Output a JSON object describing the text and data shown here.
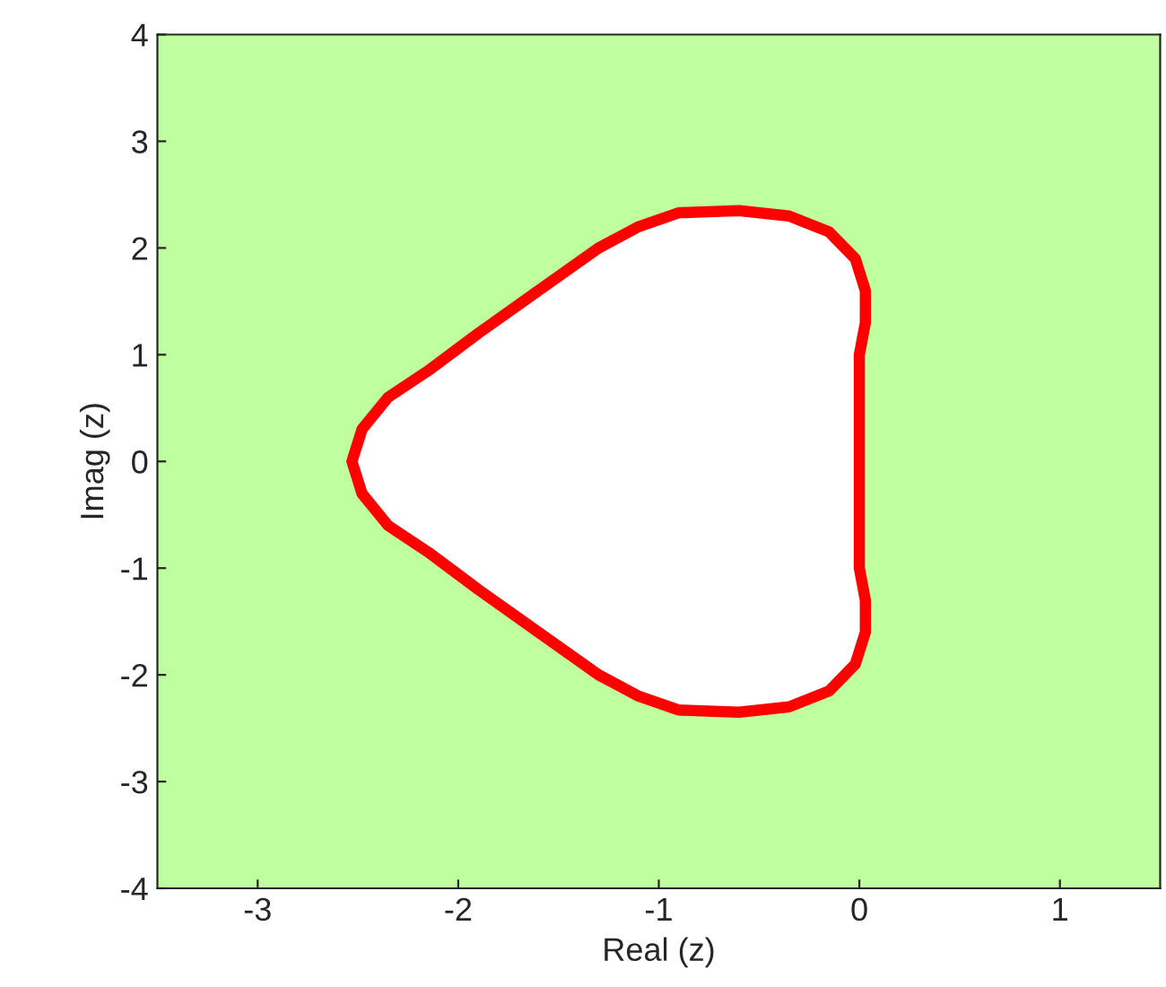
{
  "chart_data": {
    "type": "area",
    "xlabel": "Real (z)",
    "ylabel": "Imag (z)",
    "xlim": [
      -3.5,
      1.5
    ],
    "xticks": [
      -3,
      -2,
      -1,
      0,
      1
    ],
    "ylim": [
      -4,
      4
    ],
    "yticks": [
      -4,
      -3,
      -2,
      -1,
      0,
      1,
      2,
      3,
      4
    ],
    "grid": false,
    "line_style": "solid",
    "bands": [
      {
        "axis": "x",
        "from": -3.5,
        "to": 1.5,
        "color": "#bfff9f"
      }
    ],
    "series": [
      {
        "color": "#ff0000",
        "x": [
          -2.53,
          -2.48,
          -2.35,
          -2.15,
          -1.9,
          -1.6,
          -1.3,
          -1.1,
          -0.9,
          -0.6,
          -0.35,
          -0.15,
          -0.02,
          0.03,
          0.03,
          0.0,
          0.0,
          0.0,
          0.0,
          0.03,
          0.03,
          -0.02,
          -0.15,
          -0.35,
          -0.6,
          -0.9,
          -1.1,
          -1.3,
          -1.6,
          -1.9,
          -2.15,
          -2.35,
          -2.48,
          -2.53
        ],
        "values": [
          0,
          0.3,
          0.6,
          0.85,
          1.2,
          1.6,
          2.0,
          2.2,
          2.33,
          2.35,
          2.3,
          2.15,
          1.9,
          1.6,
          1.3,
          1.0,
          0.5,
          -0.5,
          -1.0,
          -1.3,
          -1.6,
          -1.9,
          -2.15,
          -2.3,
          -2.35,
          -2.33,
          -2.2,
          -2.0,
          -1.6,
          -1.2,
          -0.85,
          -0.6,
          -0.3,
          0
        ]
      }
    ]
  }
}
